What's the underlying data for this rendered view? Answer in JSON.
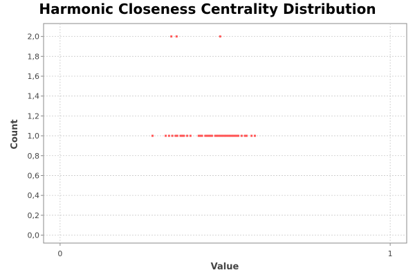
{
  "chart_data": {
    "type": "scatter",
    "title": "Harmonic Closeness Centrality Distribution",
    "xlabel": "Value",
    "ylabel": "Count",
    "xlim": [
      -0.05,
      1.05
    ],
    "ylim": [
      -0.08,
      2.13
    ],
    "x_ticks": [
      0,
      1
    ],
    "x_tick_labels": [
      "0",
      "1"
    ],
    "y_ticks": [
      0,
      0.2,
      0.4,
      0.6,
      0.8,
      1.0,
      1.2,
      1.4,
      1.6,
      1.8,
      2.0
    ],
    "y_tick_labels": [
      "0,0",
      "0,2",
      "0,4",
      "0,6",
      "0,8",
      "1,0",
      "1,2",
      "1,4",
      "1,6",
      "1,8",
      "2,0"
    ],
    "grid": true,
    "legend": "none",
    "series": [
      {
        "color": "#ff5555",
        "points": [
          {
            "x": 0.28,
            "y": 1
          },
          {
            "x": 0.32,
            "y": 1
          },
          {
            "x": 0.33,
            "y": 1
          },
          {
            "x": 0.34,
            "y": 1
          },
          {
            "x": 0.35,
            "y": 1
          },
          {
            "x": 0.355,
            "y": 1
          },
          {
            "x": 0.365,
            "y": 1
          },
          {
            "x": 0.37,
            "y": 1
          },
          {
            "x": 0.375,
            "y": 1
          },
          {
            "x": 0.385,
            "y": 1
          },
          {
            "x": 0.395,
            "y": 1
          },
          {
            "x": 0.42,
            "y": 1
          },
          {
            "x": 0.425,
            "y": 1
          },
          {
            "x": 0.43,
            "y": 1
          },
          {
            "x": 0.44,
            "y": 1
          },
          {
            "x": 0.445,
            "y": 1
          },
          {
            "x": 0.45,
            "y": 1
          },
          {
            "x": 0.455,
            "y": 1
          },
          {
            "x": 0.46,
            "y": 1
          },
          {
            "x": 0.47,
            "y": 1
          },
          {
            "x": 0.475,
            "y": 1
          },
          {
            "x": 0.48,
            "y": 1
          },
          {
            "x": 0.485,
            "y": 1
          },
          {
            "x": 0.49,
            "y": 1
          },
          {
            "x": 0.495,
            "y": 1
          },
          {
            "x": 0.5,
            "y": 1
          },
          {
            "x": 0.505,
            "y": 1
          },
          {
            "x": 0.51,
            "y": 1
          },
          {
            "x": 0.515,
            "y": 1
          },
          {
            "x": 0.52,
            "y": 1
          },
          {
            "x": 0.525,
            "y": 1
          },
          {
            "x": 0.53,
            "y": 1
          },
          {
            "x": 0.535,
            "y": 1
          },
          {
            "x": 0.54,
            "y": 1
          },
          {
            "x": 0.55,
            "y": 1
          },
          {
            "x": 0.56,
            "y": 1
          },
          {
            "x": 0.565,
            "y": 1
          },
          {
            "x": 0.58,
            "y": 1
          },
          {
            "x": 0.59,
            "y": 1
          },
          {
            "x": 0.337,
            "y": 2
          },
          {
            "x": 0.353,
            "y": 2
          },
          {
            "x": 0.485,
            "y": 2
          }
        ]
      }
    ]
  }
}
